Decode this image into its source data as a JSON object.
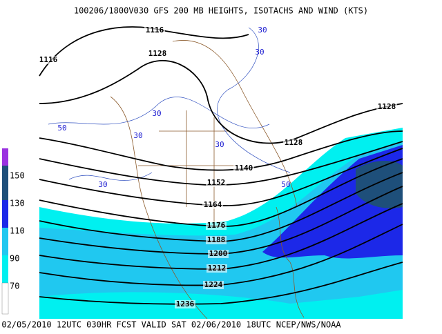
{
  "header": {
    "title": "100206/1800V030 GFS 200 MB  HEIGHTS, ISOTACHS AND WIND (KTS)"
  },
  "footer": {
    "text": "02/05/2010 12UTC 030HR FCST VALID SAT 02/06/2010 18UTC  NCEP/NWS/NOAA"
  },
  "color_bar": {
    "labels": [
      "150",
      "130",
      "110",
      "90",
      "70"
    ]
  },
  "height_contours": {
    "labels": [
      "1116",
      "1128",
      "1116",
      "1128",
      "1128",
      "1140",
      "1152",
      "1164",
      "1176",
      "1188",
      "1200",
      "1212",
      "1224",
      "1236"
    ]
  },
  "isotachs": {
    "labels": [
      "30",
      "30",
      "30",
      "30",
      "50",
      "30",
      "50",
      "30"
    ]
  }
}
